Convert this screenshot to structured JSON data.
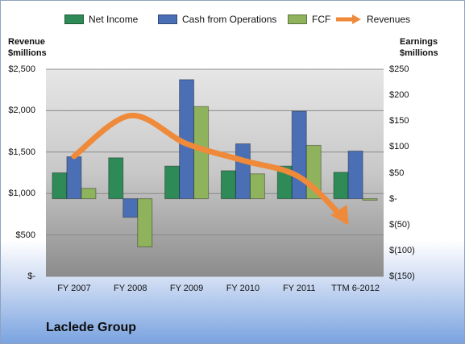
{
  "legend": {
    "net_income": "Net Income",
    "cash_ops": "Cash from Operations",
    "fcf": "FCF",
    "revenues": "Revenues"
  },
  "axes": {
    "left_title_line1": "Revenue",
    "left_title_line2": "$millions",
    "right_title_line1": "Earnings",
    "right_title_line2": "$millions"
  },
  "company": "Laclede Group",
  "colors": {
    "net_income": "#2e8b57",
    "cash_ops": "#4a6fb5",
    "fcf": "#8fb35c",
    "revenues": "#ef8a3a",
    "plot_bg_top": "#e4e4e4",
    "plot_bg_bottom": "#8f8f8f"
  },
  "chart_data": {
    "type": "bar",
    "categories": [
      "FY 2007",
      "FY 2008",
      "FY 2009",
      "FY 2010",
      "FY 2011",
      "TTM 6-2012"
    ],
    "series": [
      {
        "name": "Net Income",
        "axis": "right",
        "values": [
          50,
          79,
          63,
          54,
          63,
          51
        ]
      },
      {
        "name": "Cash from Operations",
        "axis": "right",
        "values": [
          81,
          -36,
          230,
          106,
          169,
          92
        ]
      },
      {
        "name": "FCF",
        "axis": "right",
        "values": [
          20,
          -93,
          178,
          48,
          103,
          -3
        ]
      },
      {
        "name": "Revenues",
        "axis": "left",
        "type": "line",
        "values": [
          1450,
          1940,
          1600,
          1400,
          1200,
          670
        ]
      }
    ],
    "left_axis": {
      "label": "Revenue $millions",
      "ylim": [
        0,
        2500
      ],
      "ticks": [
        "$2,500",
        "$2,000",
        "$1,500",
        "$1,000",
        "$500",
        "$-"
      ],
      "tick_values": [
        2500,
        2000,
        1500,
        1000,
        500,
        0
      ]
    },
    "right_axis": {
      "label": "Earnings $millions",
      "ylim": [
        -150,
        250
      ],
      "ticks": [
        "$250",
        "$200",
        "$150",
        "$100",
        "$50",
        "$-",
        "$(50)",
        "$(100)",
        "$(150)"
      ],
      "tick_values": [
        250,
        200,
        150,
        100,
        50,
        0,
        -50,
        -100,
        -150
      ]
    },
    "grid": true,
    "legend_position": "top"
  }
}
